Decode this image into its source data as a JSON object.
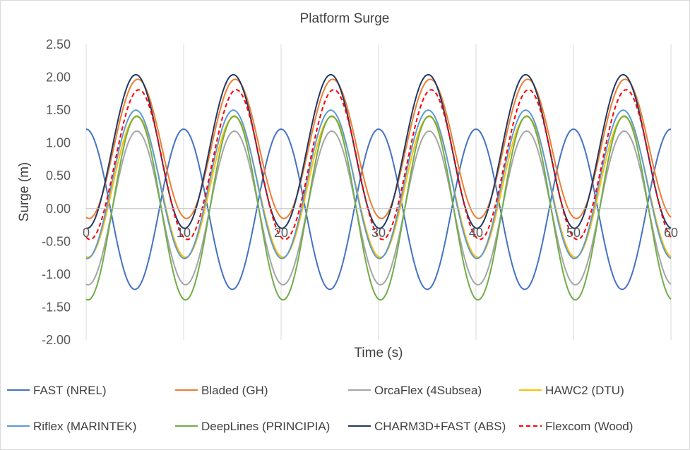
{
  "chart_data": {
    "type": "line",
    "title": "Platform Surge",
    "xlabel": "Time (s)",
    "ylabel": "Surge (m)",
    "xlim": [
      0,
      60
    ],
    "ylim": [
      -2.0,
      2.5
    ],
    "x_ticks": [
      "0",
      "10",
      "20",
      "30",
      "40",
      "50",
      "60"
    ],
    "y_ticks": [
      "2.50",
      "2.00",
      "1.50",
      "1.00",
      "0.50",
      "0.00",
      "-0.50",
      "-1.00",
      "-1.50",
      "-2.00"
    ],
    "grid": "vertical",
    "legend_position": "bottom",
    "period_s": 10,
    "series": [
      {
        "name": "FAST (NREL)",
        "color": "#4472C4",
        "dash": "solid",
        "amplitude": 1.22,
        "offset": -0.01,
        "peak_time_s": 0
      },
      {
        "name": "Bladed (GH)",
        "color": "#ED7D31",
        "dash": "solid",
        "amplitude": 1.06,
        "offset": 0.91,
        "peak_time_s": 5.3
      },
      {
        "name": "OrcaFlex (4Subsea)",
        "color": "#A5A5A5",
        "dash": "solid",
        "amplitude": 1.17,
        "offset": 0.01,
        "peak_time_s": 5.2
      },
      {
        "name": "HAWC2 (DTU)",
        "color": "#FFC000",
        "dash": "solid",
        "amplitude": 1.07,
        "offset": 0.33,
        "peak_time_s": 5.2
      },
      {
        "name": "Riflex (MARINTEK)",
        "color": "#5B9BD5",
        "dash": "solid",
        "amplitude": 1.13,
        "offset": 0.37,
        "peak_time_s": 5.1
      },
      {
        "name": "DeepLines (PRINCIPIA)",
        "color": "#70AD47",
        "dash": "solid",
        "amplitude": 1.4,
        "offset": 0.01,
        "peak_time_s": 5.2
      },
      {
        "name": "CHARM3D+FAST (ABS)",
        "color": "#203864",
        "dash": "solid",
        "amplitude": 1.17,
        "offset": 0.87,
        "peak_time_s": 5.1
      },
      {
        "name": "Flexcom (Wood)",
        "color": "#FF0000",
        "dash": "dashed",
        "amplitude": 1.14,
        "offset": 0.67,
        "peak_time_s": 5.4
      }
    ]
  }
}
